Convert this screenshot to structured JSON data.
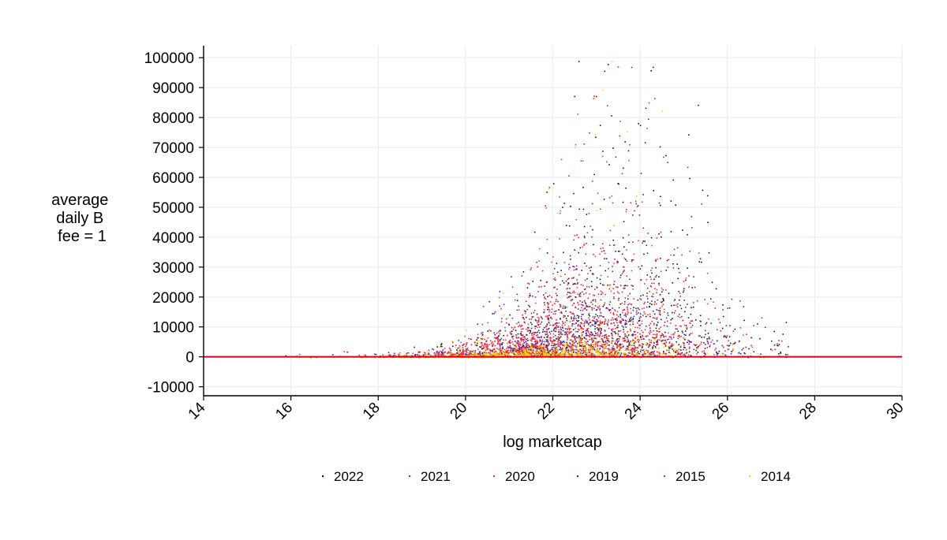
{
  "chart_data": {
    "type": "scatter",
    "xlabel": "log marketcap",
    "ylabel_lines": [
      "average",
      "daily B",
      "fee = 1"
    ],
    "xlim": [
      14,
      30
    ],
    "ylim": [
      -13000,
      104000
    ],
    "xticks": [
      14,
      16,
      18,
      20,
      22,
      24,
      26,
      28,
      30
    ],
    "xtick_labels": [
      "14",
      "16",
      "18",
      "20",
      "22",
      "24",
      "26",
      "28",
      "30"
    ],
    "yticks": [
      -10000,
      0,
      10000,
      20000,
      30000,
      40000,
      50000,
      60000,
      70000,
      80000,
      90000,
      100000
    ],
    "ytick_labels": [
      "-10000",
      "0",
      "10000",
      "20000",
      "30000",
      "40000",
      "50000",
      "60000",
      "70000",
      "80000",
      "90000",
      "100000"
    ],
    "grid": true,
    "legend_position": "bottom",
    "reference_line": {
      "y": 0,
      "color": "#d6001c"
    },
    "series": [
      {
        "name": "2022",
        "color": "#1a1a1a",
        "center_x": 23.0,
        "scale": 14000
      },
      {
        "name": "2021",
        "color": "#e8192c",
        "center_x": 22.6,
        "scale": 11000
      },
      {
        "name": "2020",
        "color": "#ff3355",
        "center_x": 22.3,
        "scale": 8000
      },
      {
        "name": "2019",
        "color": "#1f2fd6",
        "center_x": 22.4,
        "scale": 7500
      },
      {
        "name": "2015",
        "color": "#ff2a2a",
        "center_x": 21.8,
        "scale": 5000
      },
      {
        "name": "2014",
        "color": "#ffd500",
        "center_x": 21.5,
        "scale": 1800
      }
    ]
  }
}
